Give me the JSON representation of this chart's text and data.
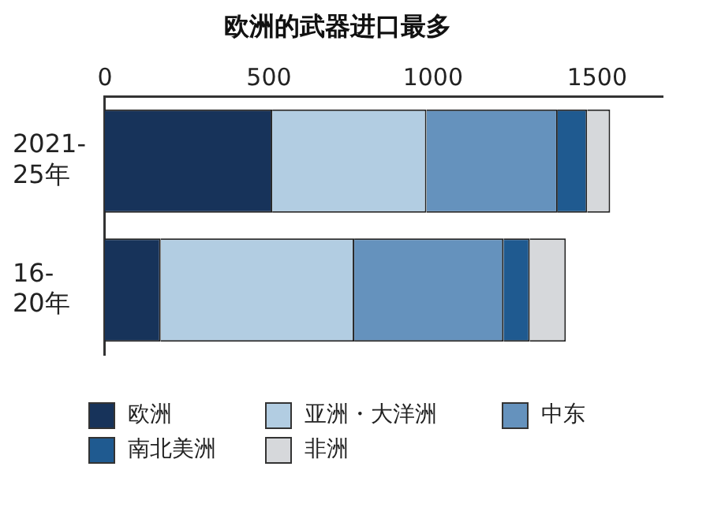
{
  "chart_data": {
    "type": "bar",
    "orientation": "horizontal",
    "stacked": true,
    "title": "欧洲的武器进口最多",
    "categories": [
      "2021-25年",
      "16-20年"
    ],
    "series": [
      {
        "name": "欧洲",
        "color": "#17335a",
        "values": [
          510,
          170
        ]
      },
      {
        "name": "亚洲・大洋洲",
        "color": "#b2cde2",
        "values": [
          470,
          590
        ]
      },
      {
        "name": "中东",
        "color": "#6592bd",
        "values": [
          400,
          455
        ]
      },
      {
        "name": "南北美洲",
        "color": "#1f5a90",
        "values": [
          90,
          80
        ]
      },
      {
        "name": "非洲",
        "color": "#d6d8db",
        "values": [
          70,
          110
        ]
      }
    ],
    "xlim": [
      0,
      1700
    ],
    "xticks": [
      0,
      500,
      1000,
      1500
    ],
    "grid": false,
    "legend": "bottom"
  }
}
